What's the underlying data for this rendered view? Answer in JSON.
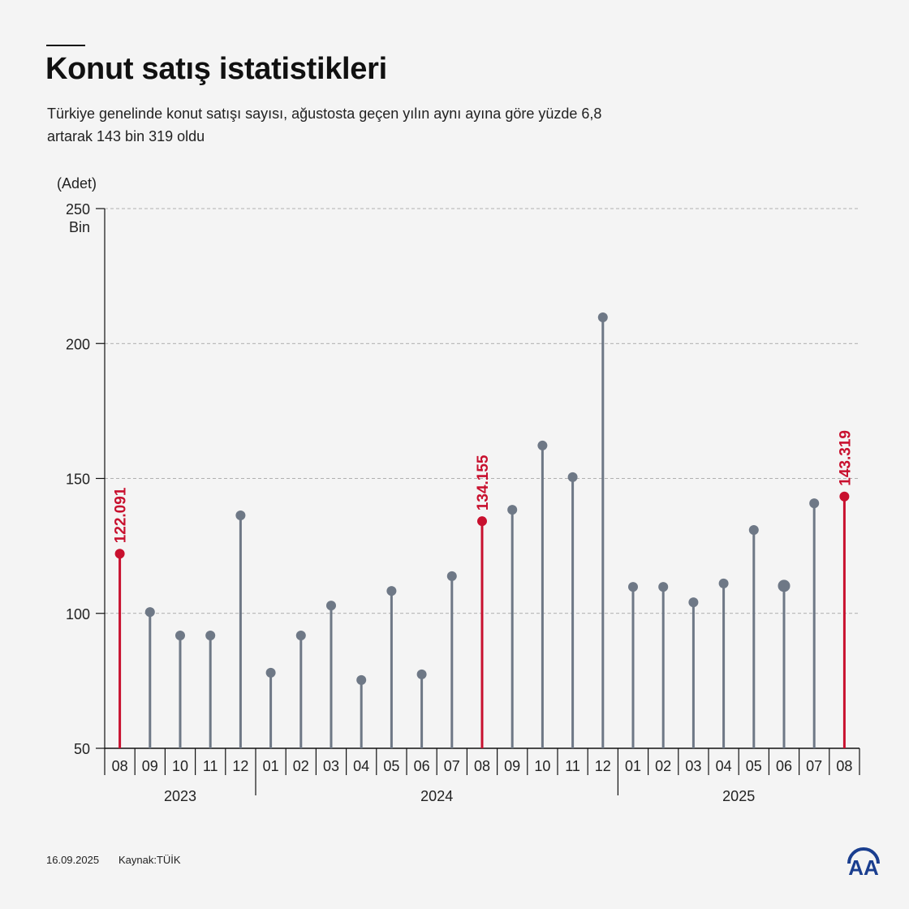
{
  "header": {
    "title": "Konut satış istatistikleri",
    "subtitle": "Türkiye genelinde konut satışı sayısı, ağustosta geçen yılın aynı ayına göre yüzde 6,8 artarak 143 bin 319 oldu"
  },
  "footer": {
    "date": "16.09.2025",
    "source": "Kaynak:TÜİK",
    "logo_text": "AA"
  },
  "colors": {
    "highlight": "#c8102e",
    "normal": "#6e7886",
    "background": "#f4f4f4"
  },
  "chart_data": {
    "type": "lollipop",
    "ylabel": "(Adet)",
    "yunit": "Bin",
    "ylim": [
      50,
      250
    ],
    "yticks": [
      50,
      100,
      150,
      200,
      250
    ],
    "grid": true,
    "categories": [
      "08",
      "09",
      "10",
      "11",
      "12",
      "01",
      "02",
      "03",
      "04",
      "05",
      "06",
      "07",
      "08",
      "09",
      "10",
      "11",
      "12",
      "01",
      "02",
      "03",
      "04",
      "05",
      "06",
      "07",
      "08"
    ],
    "years": [
      {
        "label": "2023",
        "from": 0,
        "to": 4
      },
      {
        "label": "2024",
        "from": 5,
        "to": 16
      },
      {
        "label": "2025",
        "from": 17,
        "to": 24
      }
    ],
    "values": [
      122.091,
      100.5,
      91.8,
      91.8,
      136.3,
      78.0,
      91.8,
      102.9,
      75.3,
      108.3,
      77.4,
      113.8,
      134.155,
      138.4,
      162.2,
      150.5,
      209.7,
      109.8,
      109.8,
      104.1,
      111.1,
      130.9,
      110.2,
      140.8,
      143.319
    ],
    "highlighted": [
      0,
      12,
      24
    ],
    "data_labels": {
      "0": "122.091",
      "12": "134.155",
      "24": "143.319"
    }
  }
}
